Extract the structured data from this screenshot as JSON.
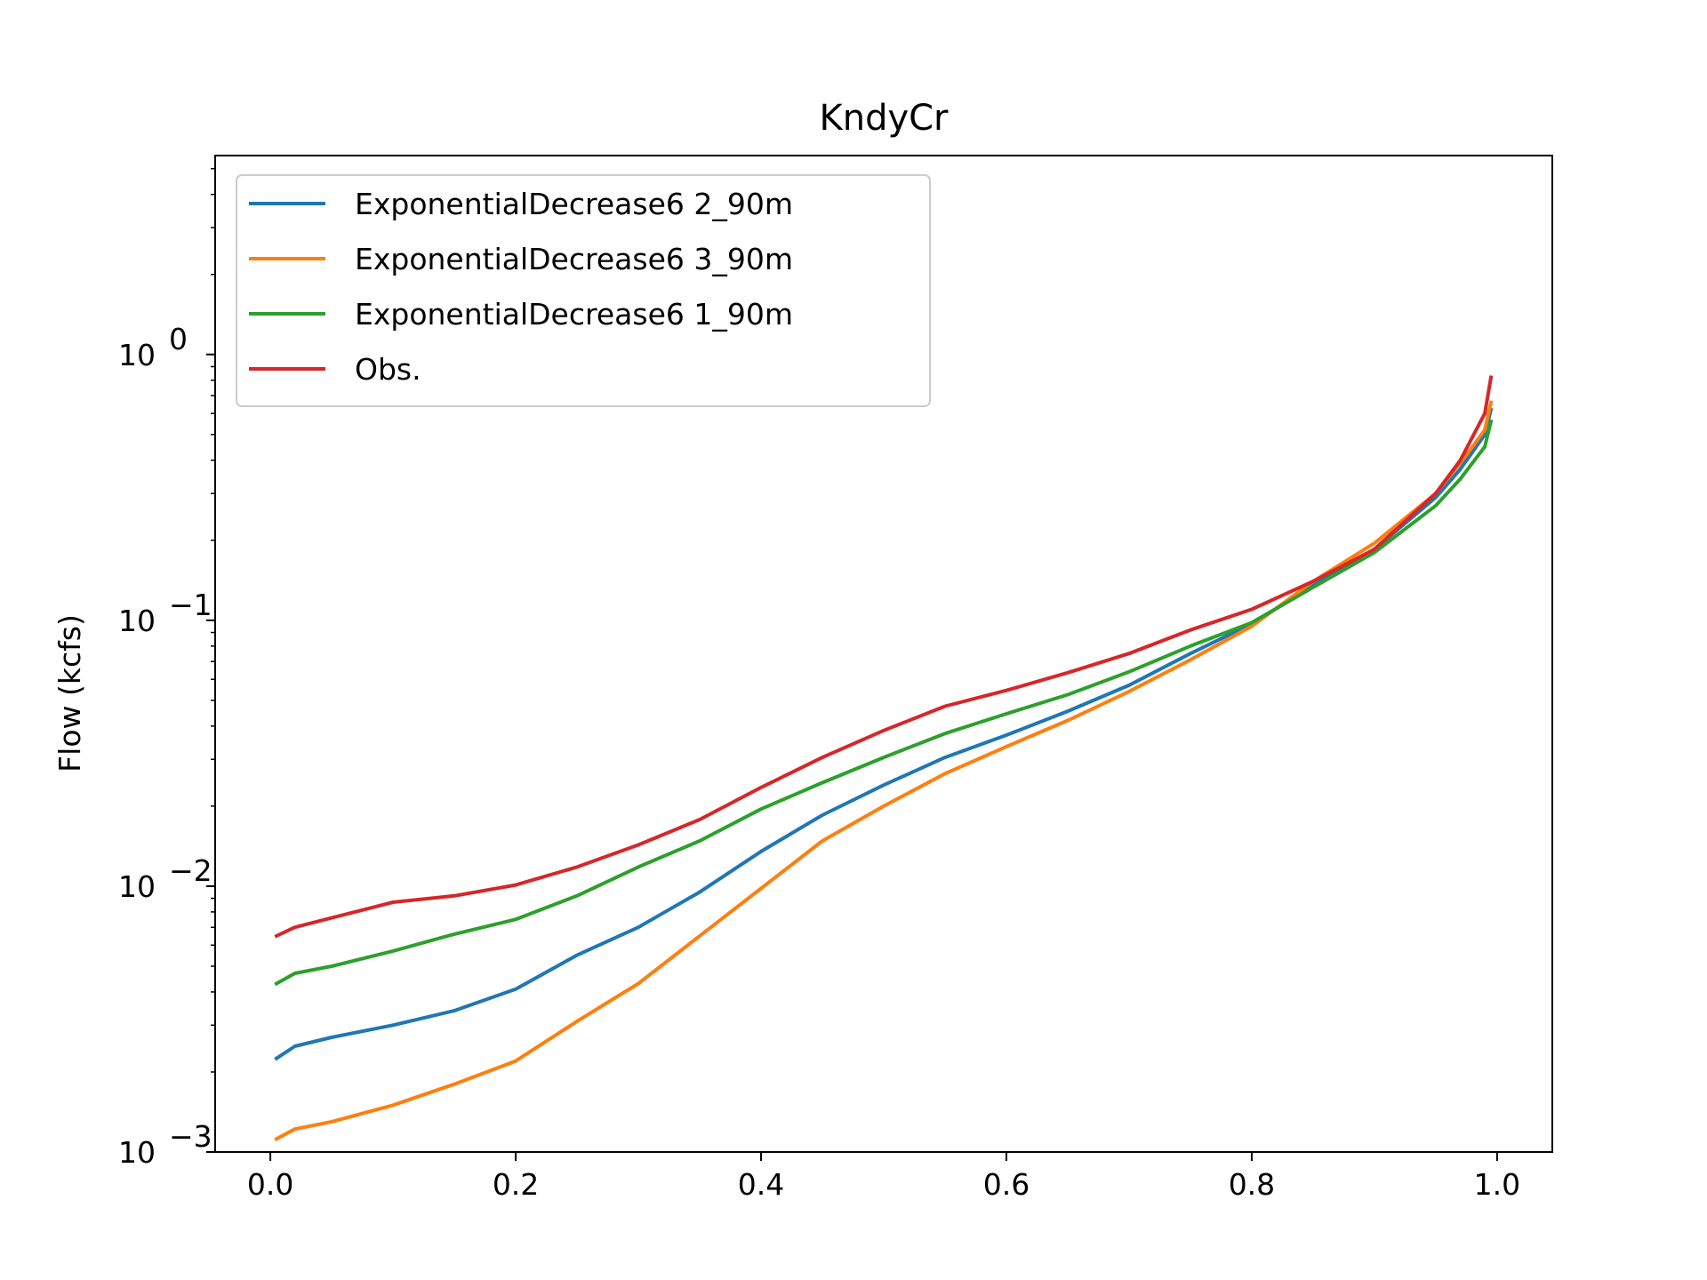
{
  "chart_data": {
    "type": "line",
    "title": "KndyCr",
    "xlabel": "",
    "ylabel": "Flow (kcfs)",
    "xlim": [
      -0.045,
      1.045
    ],
    "ylim": [
      0.001,
      5.6
    ],
    "yscale": "log",
    "grid": false,
    "legend_position": "top-left",
    "x_ticks": [
      0.0,
      0.2,
      0.4,
      0.6,
      0.8,
      1.0
    ],
    "x_tick_labels": [
      "0.0",
      "0.2",
      "0.4",
      "0.6",
      "0.8",
      "1.0"
    ],
    "y_ticks": [
      0.001,
      0.01,
      0.1,
      1
    ],
    "y_tick_labels": [
      {
        "base": "10",
        "exp": "−3"
      },
      {
        "base": "10",
        "exp": "−2"
      },
      {
        "base": "10",
        "exp": "−1"
      },
      {
        "base": "10",
        "exp": "0"
      }
    ],
    "series": [
      {
        "name": "ExponentialDecrease6 2_90m",
        "color": "#1f77b4",
        "x": [
          0.005,
          0.02,
          0.05,
          0.1,
          0.15,
          0.2,
          0.25,
          0.3,
          0.35,
          0.4,
          0.45,
          0.5,
          0.55,
          0.6,
          0.65,
          0.7,
          0.75,
          0.8,
          0.85,
          0.9,
          0.95,
          0.97,
          0.99,
          0.995
        ],
        "y": [
          0.00225,
          0.0025,
          0.0027,
          0.003,
          0.0034,
          0.0041,
          0.0055,
          0.007,
          0.0095,
          0.0135,
          0.0185,
          0.024,
          0.0305,
          0.037,
          0.0455,
          0.057,
          0.075,
          0.097,
          0.135,
          0.185,
          0.29,
          0.37,
          0.5,
          0.62
        ]
      },
      {
        "name": "ExponentialDecrease6 3_90m",
        "color": "#ff7f0e",
        "x": [
          0.005,
          0.02,
          0.05,
          0.1,
          0.15,
          0.2,
          0.25,
          0.3,
          0.35,
          0.4,
          0.45,
          0.5,
          0.55,
          0.6,
          0.65,
          0.7,
          0.75,
          0.8,
          0.85,
          0.9,
          0.95,
          0.97,
          0.99,
          0.995
        ],
        "y": [
          0.00112,
          0.00122,
          0.0013,
          0.0015,
          0.0018,
          0.0022,
          0.0031,
          0.0043,
          0.0065,
          0.0098,
          0.0148,
          0.02,
          0.0265,
          0.0335,
          0.042,
          0.054,
          0.071,
          0.095,
          0.14,
          0.195,
          0.3,
          0.39,
          0.52,
          0.66
        ]
      },
      {
        "name": "ExponentialDecrease6 1_90m",
        "color": "#2ca02c",
        "x": [
          0.005,
          0.02,
          0.05,
          0.1,
          0.15,
          0.2,
          0.25,
          0.3,
          0.35,
          0.4,
          0.45,
          0.5,
          0.55,
          0.6,
          0.65,
          0.7,
          0.75,
          0.8,
          0.85,
          0.9,
          0.95,
          0.97,
          0.99,
          0.995
        ],
        "y": [
          0.0043,
          0.0047,
          0.005,
          0.0057,
          0.0066,
          0.0075,
          0.0092,
          0.0118,
          0.0148,
          0.0195,
          0.0245,
          0.0305,
          0.0375,
          0.0445,
          0.0525,
          0.064,
          0.08,
          0.098,
          0.133,
          0.18,
          0.27,
          0.34,
          0.45,
          0.56
        ]
      },
      {
        "name": "Obs.",
        "color": "#d62728",
        "x": [
          0.005,
          0.02,
          0.05,
          0.1,
          0.15,
          0.2,
          0.25,
          0.3,
          0.35,
          0.4,
          0.45,
          0.5,
          0.55,
          0.6,
          0.65,
          0.7,
          0.75,
          0.8,
          0.85,
          0.9,
          0.95,
          0.97,
          0.99,
          0.995
        ],
        "y": [
          0.0065,
          0.007,
          0.0076,
          0.0087,
          0.0092,
          0.0101,
          0.0118,
          0.0143,
          0.0178,
          0.0235,
          0.0305,
          0.0385,
          0.0475,
          0.0545,
          0.0635,
          0.075,
          0.092,
          0.11,
          0.14,
          0.185,
          0.3,
          0.4,
          0.6,
          0.82
        ]
      }
    ]
  }
}
